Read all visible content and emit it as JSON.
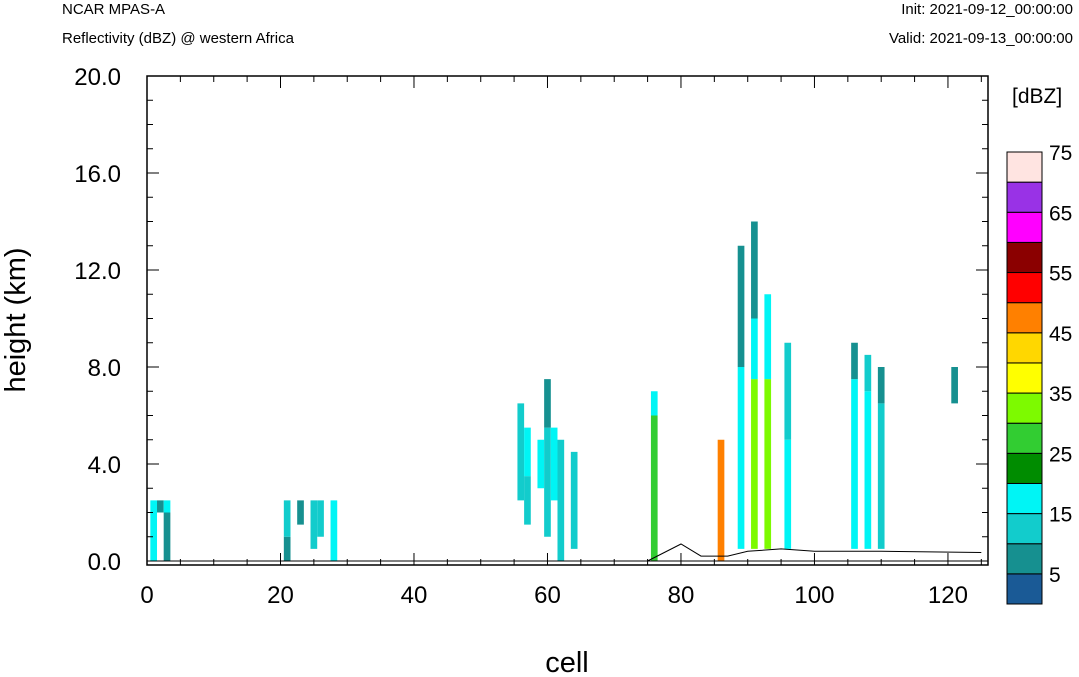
{
  "header": {
    "model": "NCAR MPAS-A",
    "field": "Reflectivity (dBZ) @ western Africa",
    "init": "Init: 2021-09-12_00:00:00",
    "valid": "Valid: 2021-09-13_00:00:00"
  },
  "chart_data": {
    "type": "heatmap",
    "title": "Reflectivity (dBZ) @ western Africa",
    "xlabel": "cell",
    "ylabel": "height (km)",
    "xlim": [
      0,
      126
    ],
    "ylim": [
      0,
      20
    ],
    "x_ticks": [
      0,
      20,
      40,
      60,
      80,
      100,
      120
    ],
    "y_ticks": [
      0.0,
      4.0,
      8.0,
      12.0,
      16.0,
      20.0
    ],
    "y_tick_labels": [
      "0.0",
      "4.0",
      "8.0",
      "12.0",
      "16.0",
      "20.0"
    ],
    "colorbar": {
      "unit_label": "[dBZ]",
      "levels": [
        0,
        5,
        10,
        15,
        20,
        25,
        30,
        35,
        40,
        45,
        50,
        55,
        60,
        65,
        70,
        75,
        80
      ],
      "tick_labels": [
        "5",
        "15",
        "25",
        "35",
        "45",
        "55",
        "65",
        "75"
      ],
      "colors": [
        "#1a5a96",
        "#169090",
        "#12cccc",
        "#00f5f5",
        "#008c00",
        "#32cd32",
        "#7dfa00",
        "#ffff00",
        "#ffd700",
        "#ff8000",
        "#ff0000",
        "#8b0000",
        "#ff00ff",
        "#9932e6",
        "#ffe4e1"
      ]
    },
    "cell_height_km": 0.5,
    "columns": [
      {
        "x": 1,
        "bins": [
          [
            0,
            2.5,
            15
          ]
        ]
      },
      {
        "x": 2,
        "bins": [
          [
            2.0,
            2.5,
            5
          ]
        ]
      },
      {
        "x": 3,
        "bins": [
          [
            0,
            2.0,
            5
          ],
          [
            2.0,
            2.5,
            15
          ]
        ]
      },
      {
        "x": 21,
        "bins": [
          [
            0,
            1.0,
            5
          ],
          [
            1.0,
            2.5,
            10
          ]
        ]
      },
      {
        "x": 23,
        "bins": [
          [
            1.5,
            2.5,
            5
          ]
        ]
      },
      {
        "x": 25,
        "bins": [
          [
            0.5,
            2.5,
            10
          ]
        ]
      },
      {
        "x": 26,
        "bins": [
          [
            1.0,
            2.5,
            10
          ]
        ]
      },
      {
        "x": 28,
        "bins": [
          [
            0,
            2.5,
            15
          ]
        ]
      },
      {
        "x": 56,
        "bins": [
          [
            2.5,
            6.5,
            10
          ]
        ]
      },
      {
        "x": 57,
        "bins": [
          [
            1.5,
            3.5,
            10
          ],
          [
            3.5,
            5.5,
            15
          ]
        ]
      },
      {
        "x": 59,
        "bins": [
          [
            3.0,
            5.0,
            15
          ]
        ]
      },
      {
        "x": 60,
        "bins": [
          [
            1.0,
            5.5,
            10
          ],
          [
            5.5,
            7.5,
            5
          ]
        ]
      },
      {
        "x": 61,
        "bins": [
          [
            2.5,
            5.5,
            15
          ]
        ]
      },
      {
        "x": 62,
        "bins": [
          [
            0,
            5.0,
            10
          ]
        ]
      },
      {
        "x": 64,
        "bins": [
          [
            0.5,
            4.5,
            10
          ]
        ]
      },
      {
        "x": 76,
        "bins": [
          [
            0,
            6.0,
            25
          ],
          [
            6.0,
            7.0,
            15
          ]
        ]
      },
      {
        "x": 86,
        "bins": [
          [
            0,
            5.0,
            45
          ]
        ]
      },
      {
        "x": 89,
        "bins": [
          [
            0.5,
            8.0,
            15
          ],
          [
            8.0,
            13.0,
            5
          ]
        ]
      },
      {
        "x": 91,
        "bins": [
          [
            0.5,
            7.5,
            30
          ],
          [
            7.5,
            10.0,
            15
          ],
          [
            10.0,
            14.0,
            5
          ]
        ]
      },
      {
        "x": 93,
        "bins": [
          [
            0.5,
            7.5,
            30
          ],
          [
            7.5,
            11.0,
            15
          ]
        ]
      },
      {
        "x": 96,
        "bins": [
          [
            0.5,
            5.0,
            15
          ],
          [
            5.0,
            9.0,
            10
          ]
        ]
      },
      {
        "x": 106,
        "bins": [
          [
            0.5,
            7.5,
            15
          ],
          [
            7.5,
            9.0,
            5
          ]
        ]
      },
      {
        "x": 108,
        "bins": [
          [
            0.5,
            7.0,
            15
          ],
          [
            7.0,
            8.5,
            10
          ]
        ]
      },
      {
        "x": 110,
        "bins": [
          [
            0.5,
            6.5,
            10
          ],
          [
            6.5,
            8.0,
            5
          ]
        ]
      },
      {
        "x": 121,
        "bins": [
          [
            6.5,
            8.0,
            5
          ]
        ]
      }
    ],
    "terrain": [
      [
        75,
        0
      ],
      [
        80,
        0.7
      ],
      [
        83,
        0.2
      ],
      [
        87,
        0.2
      ],
      [
        90,
        0.4
      ],
      [
        95,
        0.5
      ],
      [
        100,
        0.4
      ],
      [
        105,
        0.4
      ],
      [
        110,
        0.4
      ],
      [
        125,
        0.35
      ]
    ]
  }
}
